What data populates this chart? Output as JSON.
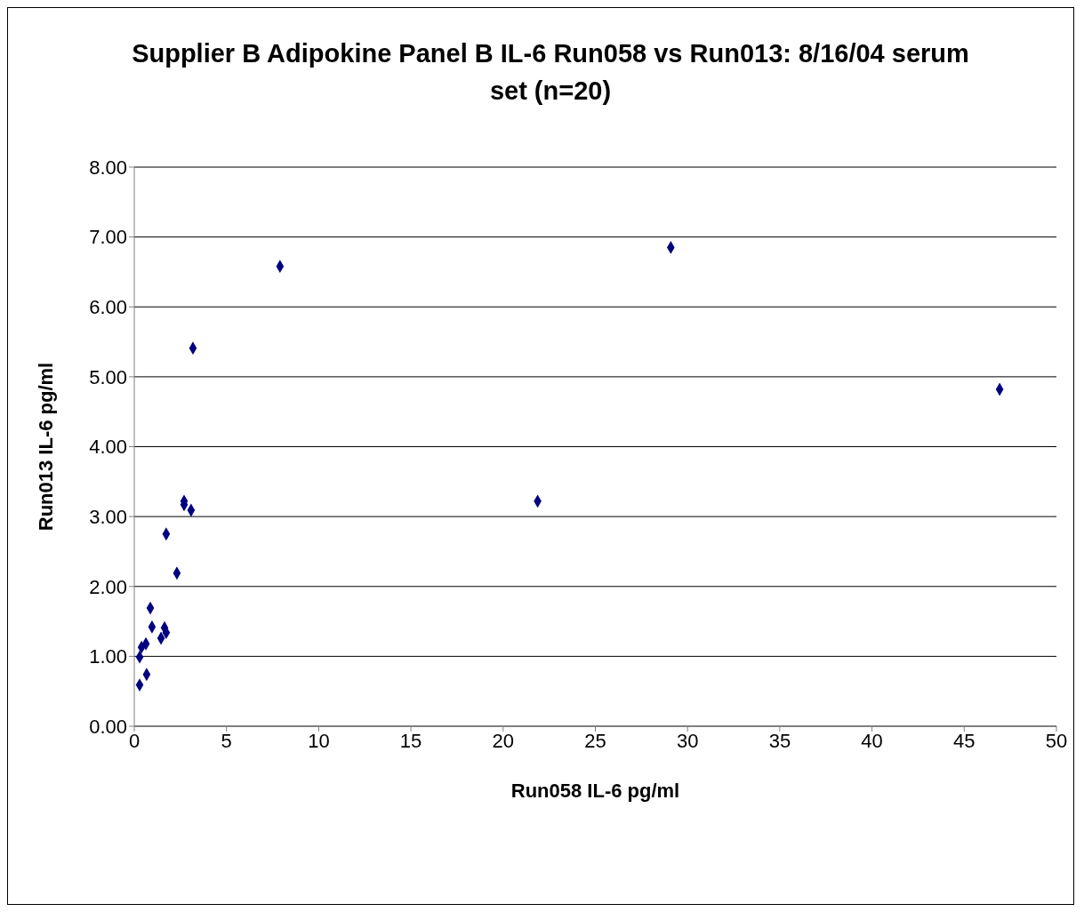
{
  "chart_data": {
    "type": "scatter",
    "title": "Supplier B Adipokine Panel B IL-6 Run058 vs Run013:  8/16/04 serum set (n=20)",
    "xlabel": "Run058 IL-6 pg/ml",
    "ylabel": "Run013 IL-6 pg/ml",
    "x": [
      0.29,
      0.67,
      0.29,
      0.39,
      0.63,
      0.87,
      0.96,
      1.45,
      1.64,
      1.73,
      1.73,
      2.31,
      2.7,
      2.7,
      3.08,
      3.18,
      7.9,
      21.87,
      29.09,
      46.92
    ],
    "series": [
      {
        "color": "#000080",
        "values": [
          0.59,
          0.74,
          0.99,
          1.13,
          1.18,
          1.69,
          1.42,
          1.26,
          1.41,
          1.34,
          2.75,
          2.19,
          3.22,
          3.17,
          3.09,
          5.41,
          6.58,
          3.22,
          6.85,
          4.82
        ]
      }
    ],
    "xlim": [
      0,
      50
    ],
    "xticks": [
      0,
      5,
      10,
      15,
      20,
      25,
      30,
      35,
      40,
      45,
      50
    ],
    "ylim": [
      0,
      8
    ],
    "yticks": [
      {
        "value": 0,
        "label": "0.00"
      },
      {
        "value": 1,
        "label": "1.00"
      },
      {
        "value": 2,
        "label": "2.00"
      },
      {
        "value": 3,
        "label": "3.00"
      },
      {
        "value": 4,
        "label": "4.00"
      },
      {
        "value": 5,
        "label": "5.00"
      },
      {
        "value": 6,
        "label": "6.00"
      },
      {
        "value": 7,
        "label": "7.00"
      },
      {
        "value": 8,
        "label": "8.00"
      }
    ],
    "grid": "y",
    "marker": "diamond"
  }
}
